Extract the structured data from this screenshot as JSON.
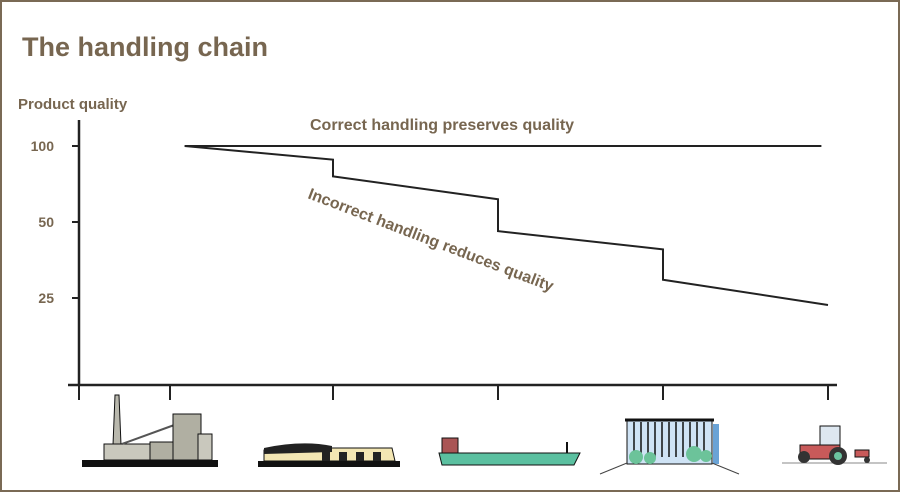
{
  "title": "The handling chain",
  "chart_data": {
    "type": "line",
    "title": "The handling chain",
    "ylabel": "Product quality",
    "xlabel": "",
    "y_ticks": [
      100,
      50,
      25
    ],
    "x_categories": [
      "factory-icon",
      "warehouse-icon",
      "ship-icon",
      "office-building-icon",
      "tractor-icon"
    ],
    "grid": false,
    "series": [
      {
        "name": "Correct handling preserves quality",
        "points": [
          [
            1.09,
            100
          ],
          [
            4.96,
            100
          ]
        ]
      },
      {
        "name": "Incorrect handling reduces quality",
        "points": [
          [
            1.09,
            100
          ],
          [
            2,
            91
          ],
          [
            2,
            80
          ],
          [
            3,
            65
          ],
          [
            3,
            47
          ],
          [
            4,
            41
          ],
          [
            4,
            31
          ],
          [
            5,
            23
          ]
        ]
      }
    ]
  },
  "colors": {
    "text": "#776650",
    "border": "#7a6a55",
    "line": "#222222"
  }
}
